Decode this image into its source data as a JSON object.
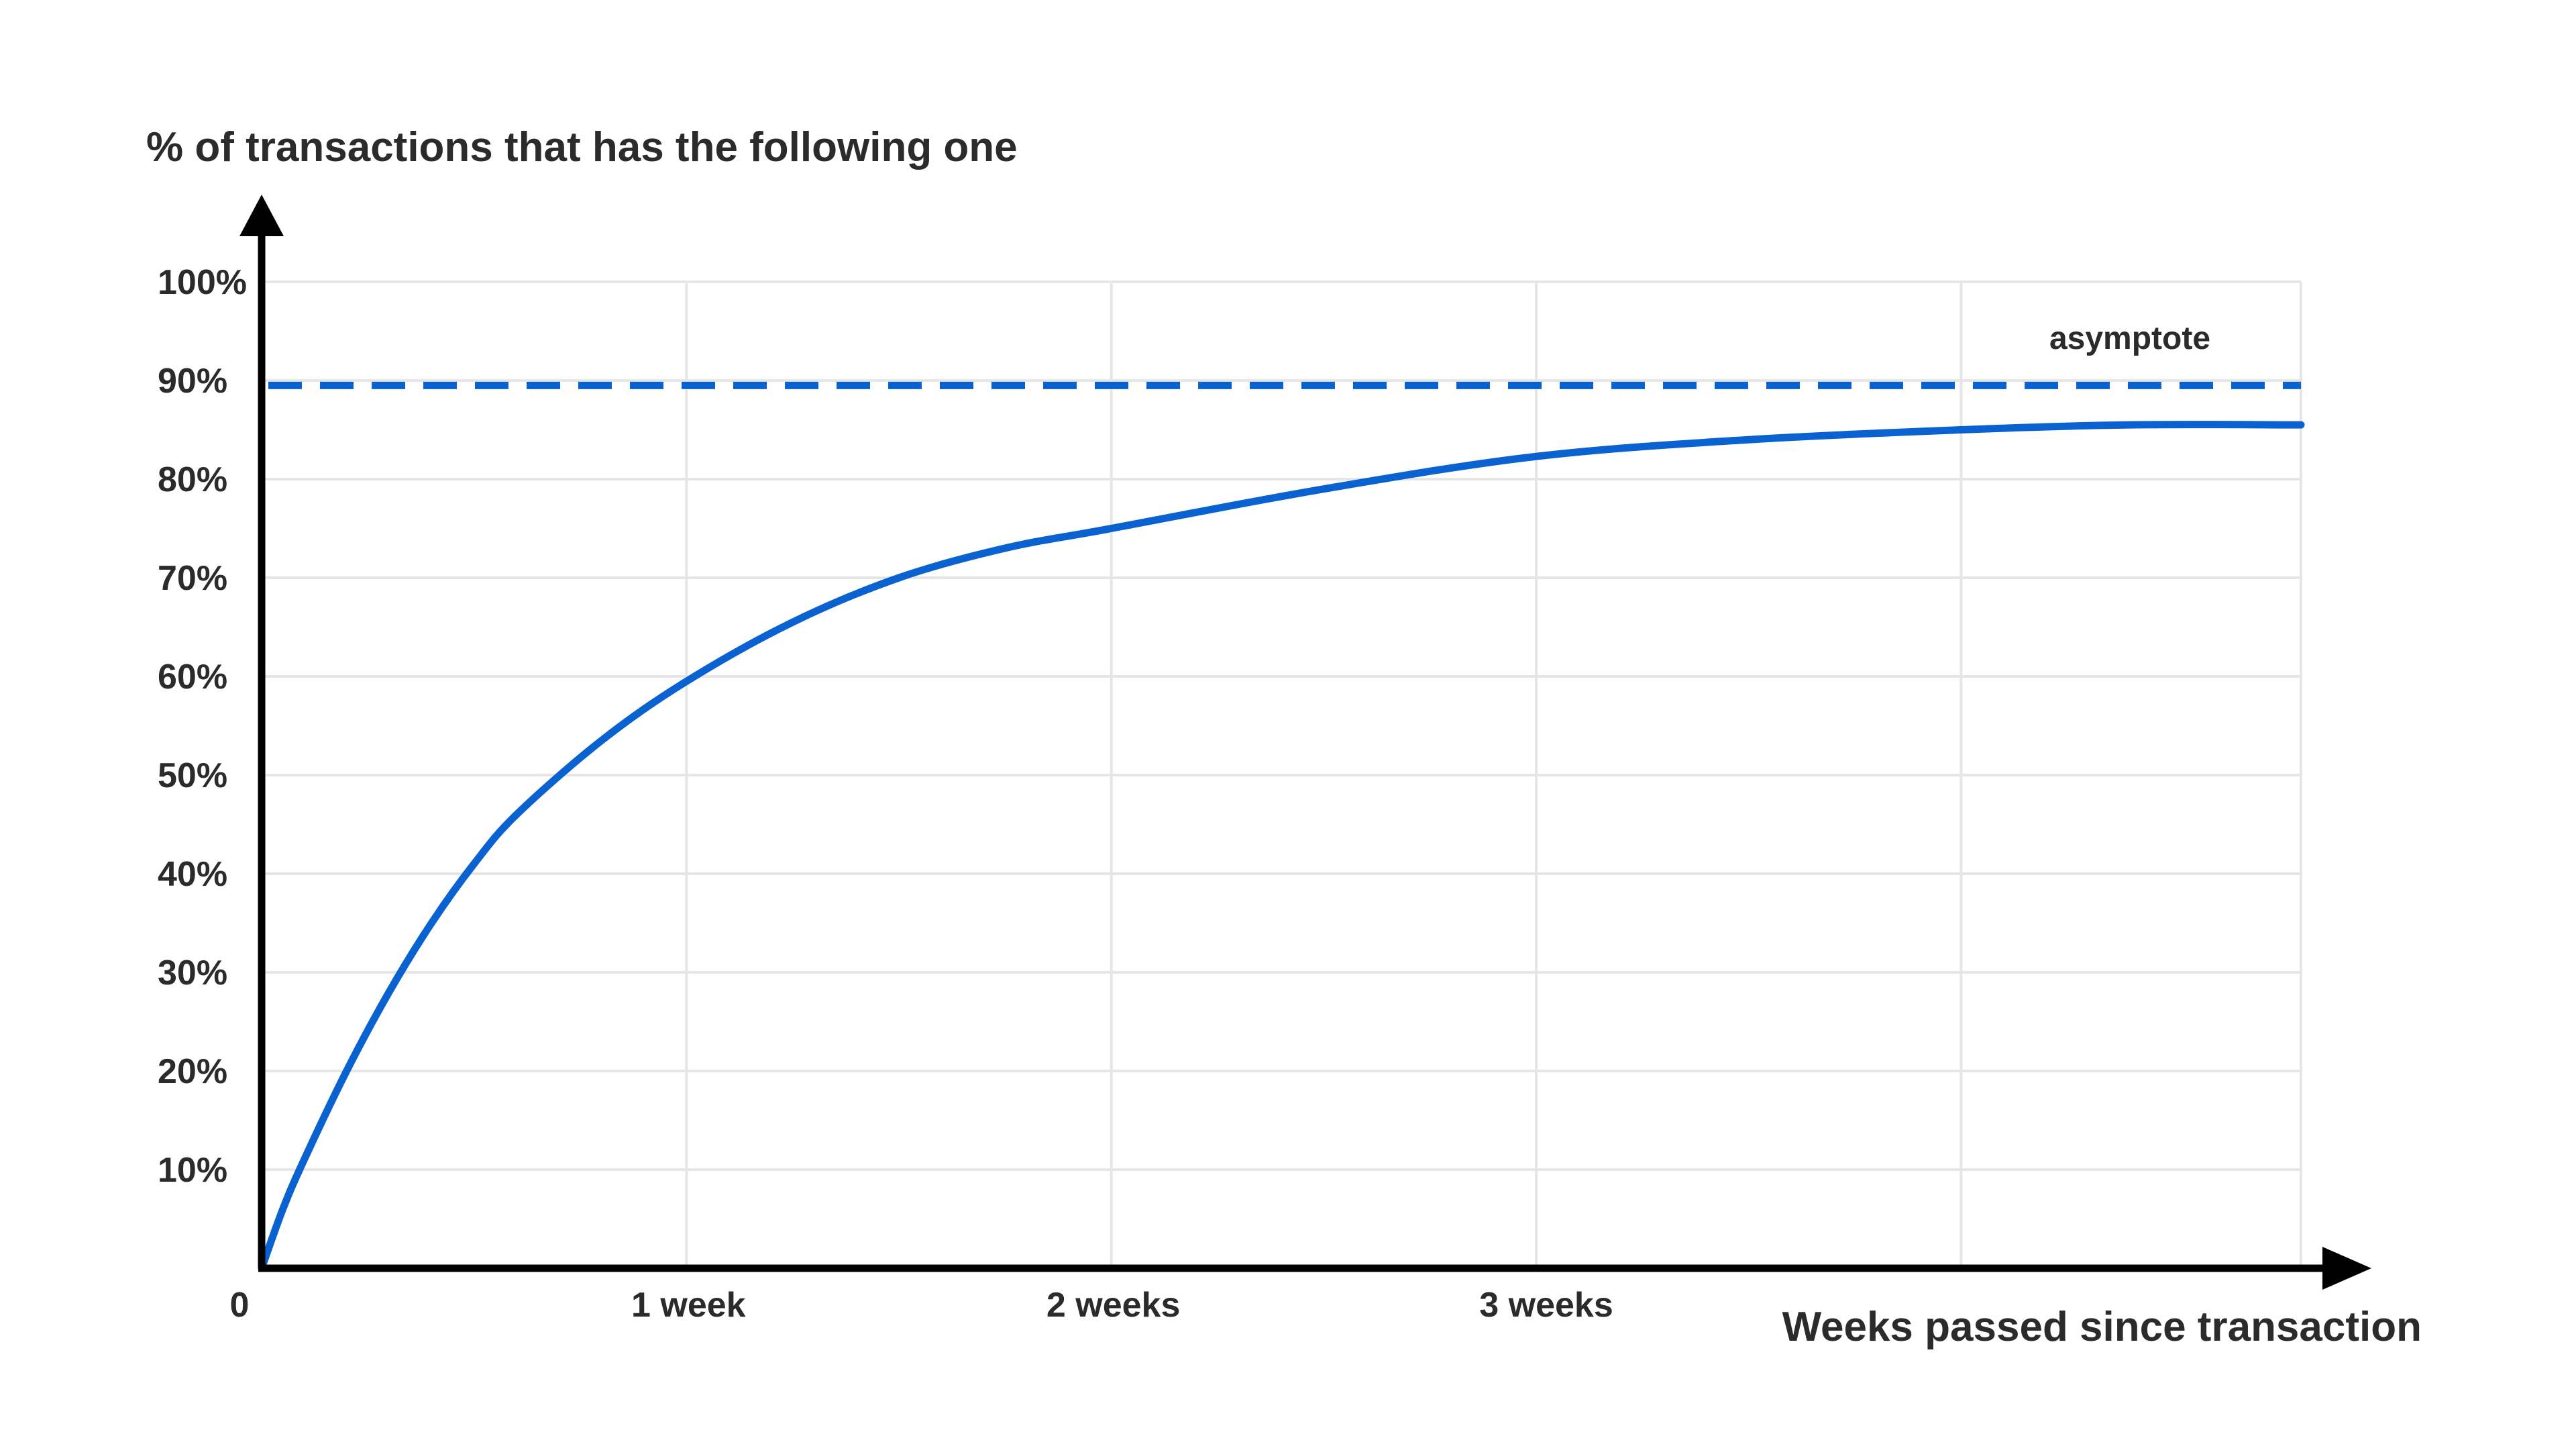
{
  "chart_data": {
    "type": "line",
    "ylabel": "% of transactions that has the following one",
    "xlabel": "Weeks passed since transaction",
    "x_unit": "weeks",
    "y_unit": "percent",
    "xlim": [
      0,
      4.8
    ],
    "ylim": [
      0,
      100
    ],
    "y_ticks": [
      {
        "value": 100,
        "label": "100%"
      },
      {
        "value": 90,
        "label": "90%"
      },
      {
        "value": 80,
        "label": "80%"
      },
      {
        "value": 70,
        "label": "70%"
      },
      {
        "value": 60,
        "label": "60%"
      },
      {
        "value": 50,
        "label": "50%"
      },
      {
        "value": 40,
        "label": "40%"
      },
      {
        "value": 30,
        "label": "30%"
      },
      {
        "value": 20,
        "label": "20%"
      },
      {
        "value": 10,
        "label": "10%"
      }
    ],
    "x_ticks": [
      {
        "value": 0,
        "label": "0"
      },
      {
        "value": 1,
        "label": "1 week"
      },
      {
        "value": 2,
        "label": "2 weeks"
      },
      {
        "value": 3,
        "label": "3 weeks"
      }
    ],
    "x_gridlines": [
      1,
      2,
      3,
      4,
      4.8
    ],
    "grid": true,
    "series": [
      {
        "color": "#0a62d0",
        "x": [
          0,
          0.05,
          0.1,
          0.2,
          0.3,
          0.4,
          0.5,
          0.6,
          0.8,
          1.0,
          1.25,
          1.5,
          1.75,
          2.0,
          2.5,
          3.0,
          3.5,
          4.0,
          4.4,
          4.8
        ],
        "y": [
          0,
          6,
          11,
          20,
          28,
          35,
          41,
          46,
          53.5,
          59.5,
          65.5,
          70,
          73,
          75,
          79,
          82.3,
          84,
          85,
          85.5,
          85.5
        ]
      }
    ],
    "asymptote": {
      "value": 89.5,
      "label": "asymptote",
      "color": "#0a62d0",
      "style": "dashed"
    }
  }
}
